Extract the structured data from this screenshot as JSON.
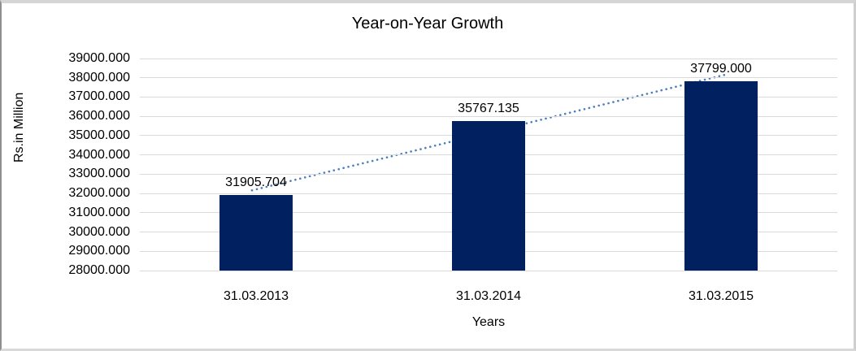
{
  "chart_data": {
    "type": "bar",
    "title": "Year-on-Year Growth",
    "xlabel": "Years",
    "ylabel": "Rs.in Million",
    "categories": [
      "31.03.2013",
      "31.03.2014",
      "31.03.2015"
    ],
    "values": [
      31905.704,
      35767.135,
      37799.0
    ],
    "value_labels": [
      "31905.704",
      "35767.135",
      "37799.000"
    ],
    "ylim": [
      28000,
      39000
    ],
    "ytick_step": 1000,
    "ytick_labels": [
      "39000.000",
      "38000.000",
      "37000.000",
      "36000.000",
      "35000.000",
      "34000.000",
      "33000.000",
      "32000.000",
      "31000.000",
      "30000.000",
      "29000.000",
      "28000.000"
    ],
    "grid": true,
    "legend": "none",
    "trendline": {
      "kind": "linear",
      "style": "dotted",
      "color": "#4a7ebc"
    },
    "colors": {
      "bar": "#002060",
      "gridline": "#d9d9d9",
      "text": "#000000"
    }
  }
}
